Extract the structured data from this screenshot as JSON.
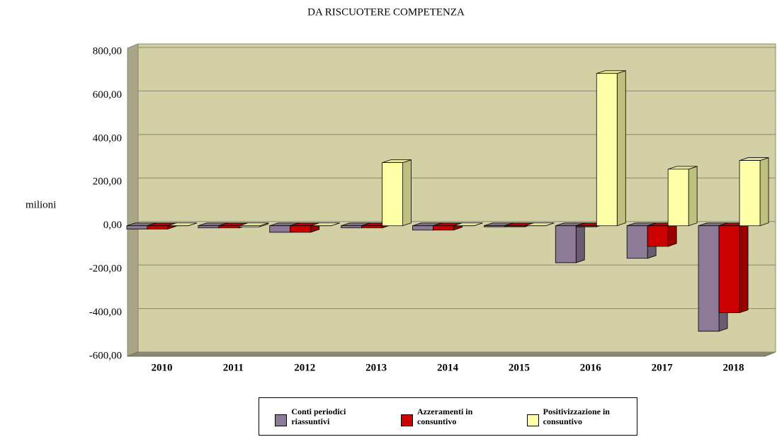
{
  "chart_data": {
    "type": "bar3d",
    "title": "DA RISCUOTERE COMPETENZA",
    "y_label": "milioni",
    "categories": [
      "2010",
      "2011",
      "2012",
      "2013",
      "2014",
      "2015",
      "2016",
      "2017",
      "2018"
    ],
    "series": [
      {
        "name": "Conti periodici riassuntivi",
        "color": "#8c7a96",
        "values": [
          -15,
          -10,
          -30,
          -10,
          -20,
          -5,
          -170,
          -150,
          -485
        ]
      },
      {
        "name": "Azzeramenti in consuntivo",
        "color": "#cc0000",
        "values": [
          -15,
          -10,
          -30,
          -10,
          -20,
          -5,
          -5,
          -95,
          -400
        ]
      },
      {
        "name": "Positivizzazione in consuntivo",
        "color": "#ffffa8",
        "values": [
          0,
          -5,
          0,
          290,
          0,
          0,
          700,
          260,
          300
        ]
      }
    ],
    "ylim": [
      -600,
      800
    ],
    "yticks": [
      {
        "value": -600,
        "label": "-600,00"
      },
      {
        "value": -400,
        "label": "-400,00"
      },
      {
        "value": -200,
        "label": "-200,00"
      },
      {
        "value": 0,
        "label": "0,00"
      },
      {
        "value": 200,
        "label": "200,00"
      },
      {
        "value": 400,
        "label": "400,00"
      },
      {
        "value": 600,
        "label": "600,00"
      },
      {
        "value": 800,
        "label": "800,00"
      }
    ],
    "grid": true
  }
}
